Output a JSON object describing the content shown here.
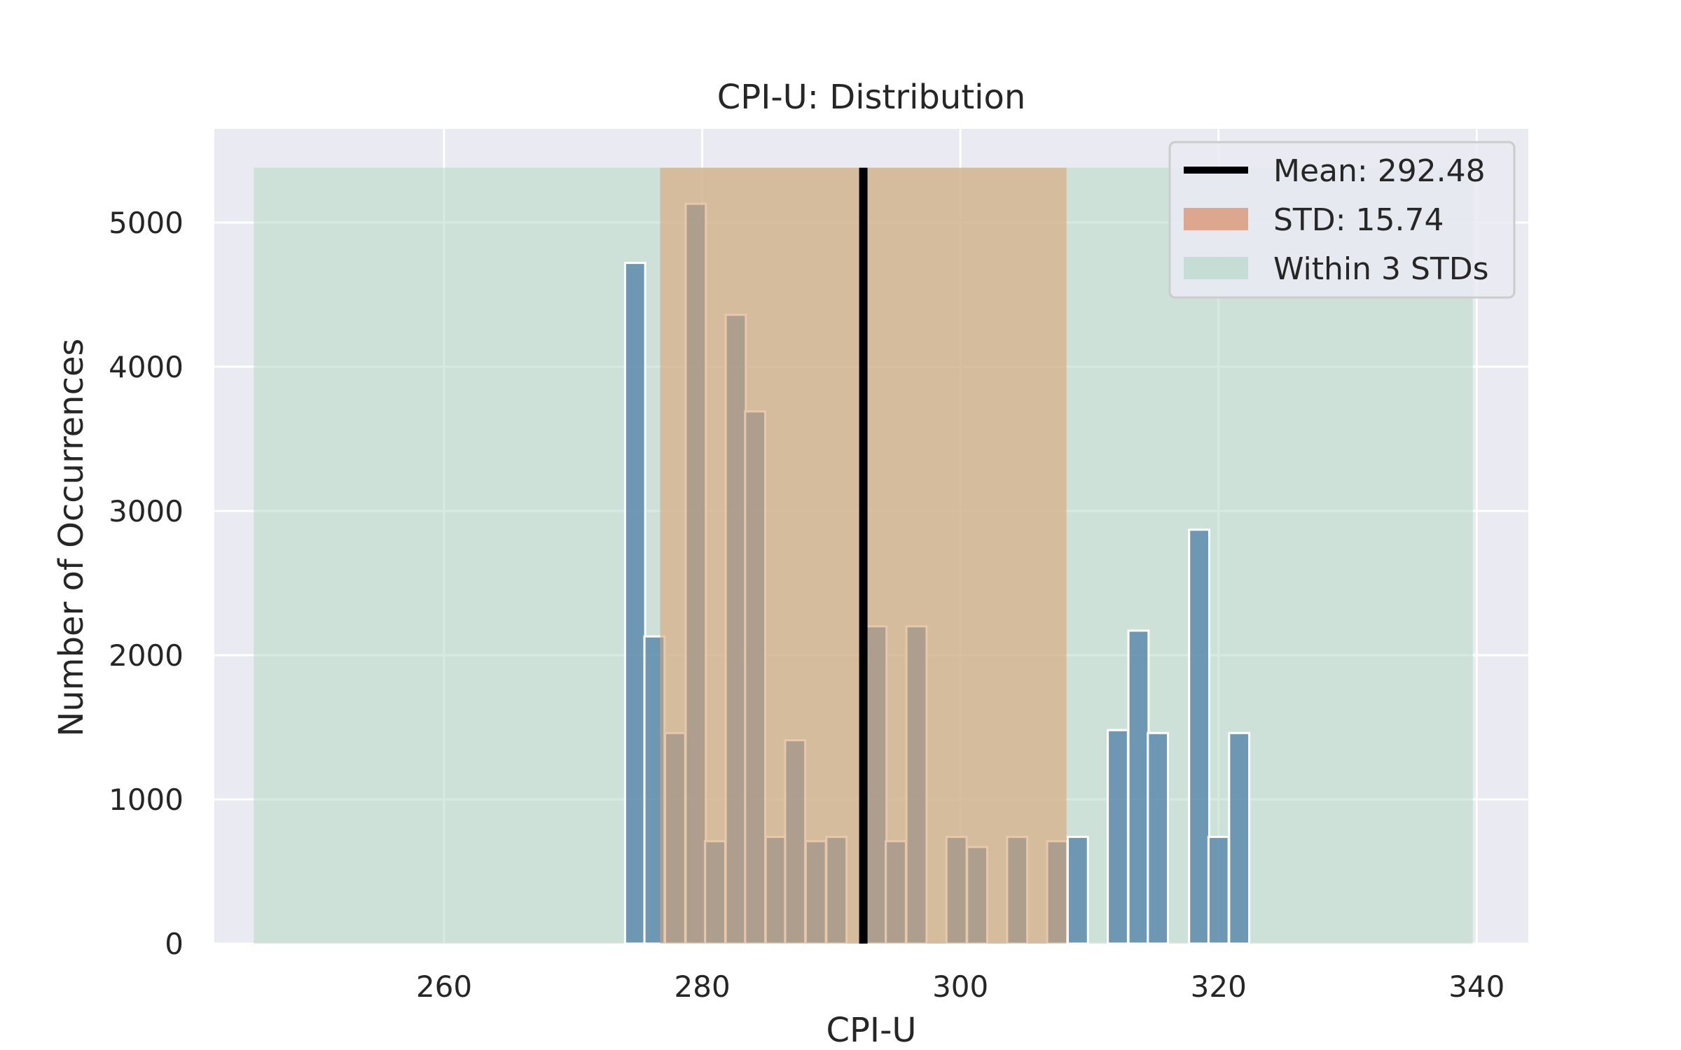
{
  "chart_data": {
    "type": "bar",
    "title": "CPI-U: Distribution",
    "xlabel": "CPI-U",
    "ylabel": "Number of Occurrences",
    "xlim": [
      242.2,
      344.0
    ],
    "ylim": [
      0,
      5650
    ],
    "xticks": [
      "260",
      "280",
      "300",
      "320",
      "340"
    ],
    "yticks": [
      "0",
      "1000",
      "2000",
      "3000",
      "4000",
      "5000"
    ],
    "grid": true,
    "legend_position": "top-right",
    "bin_width": 1.56,
    "bars": [
      {
        "x": 274.8,
        "y": 4720
      },
      {
        "x": 276.3,
        "y": 2130
      },
      {
        "x": 277.9,
        "y": 1460
      },
      {
        "x": 279.5,
        "y": 5130
      },
      {
        "x": 281.0,
        "y": 710
      },
      {
        "x": 282.6,
        "y": 4360
      },
      {
        "x": 284.1,
        "y": 3690
      },
      {
        "x": 285.7,
        "y": 740
      },
      {
        "x": 287.2,
        "y": 1410
      },
      {
        "x": 288.8,
        "y": 710
      },
      {
        "x": 290.4,
        "y": 740
      },
      {
        "x": 293.5,
        "y": 2200
      },
      {
        "x": 295.0,
        "y": 710
      },
      {
        "x": 296.6,
        "y": 2200
      },
      {
        "x": 299.7,
        "y": 740
      },
      {
        "x": 301.3,
        "y": 670
      },
      {
        "x": 304.4,
        "y": 740
      },
      {
        "x": 307.5,
        "y": 710
      },
      {
        "x": 309.1,
        "y": 740
      },
      {
        "x": 312.2,
        "y": 1480
      },
      {
        "x": 313.8,
        "y": 2170
      },
      {
        "x": 315.3,
        "y": 1460
      },
      {
        "x": 318.5,
        "y": 2870
      },
      {
        "x": 320.0,
        "y": 740
      },
      {
        "x": 321.6,
        "y": 1460
      }
    ],
    "mean": 292.48,
    "std": 15.74,
    "std_band": [
      276.74,
      308.22
    ],
    "three_std_band": [
      245.26,
      339.7
    ],
    "band_top": 5380,
    "legend": [
      {
        "label": "Mean: 292.48",
        "kind": "line",
        "color": "#000000"
      },
      {
        "label": "STD: 15.74",
        "kind": "patch",
        "color": "#dda68e"
      },
      {
        "label": "Within 3 STDs",
        "kind": "patch",
        "color": "#c6ddd5"
      }
    ],
    "colors": {
      "background": "#eaeaf2",
      "grid": "#ffffff",
      "bar": "#4c7ea5",
      "bar_edge": "#ffffff",
      "std_band": "#d9a475",
      "three_std_band": "#b5d9c5",
      "mean_line": "#000000"
    }
  }
}
